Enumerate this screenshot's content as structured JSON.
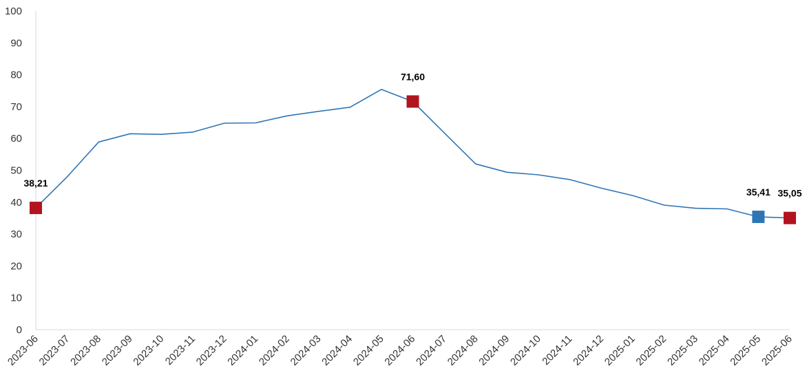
{
  "chart_data": {
    "type": "line",
    "title": "",
    "xlabel": "",
    "ylabel": "",
    "ylim": [
      0,
      100
    ],
    "y_ticks": [
      "0",
      "10",
      "20",
      "30",
      "40",
      "50",
      "60",
      "70",
      "80",
      "90",
      "100"
    ],
    "grid": false,
    "legend": "none",
    "categories": [
      "2023-06",
      "2023-07",
      "2023-08",
      "2023-09",
      "2023-10",
      "2023-11",
      "2023-12",
      "2024-01",
      "2024-02",
      "2024-03",
      "2024-04",
      "2024-05",
      "2024-06",
      "2024-07",
      "2024-08",
      "2024-09",
      "2024-10",
      "2024-11",
      "2024-12",
      "2025-01",
      "2025-02",
      "2025-03",
      "2025-04",
      "2025-05",
      "2025-06"
    ],
    "series": [
      {
        "color": "#2e75b6",
        "values": [
          38.21,
          48.0,
          58.9,
          61.5,
          61.3,
          62.0,
          64.8,
          64.9,
          67.1,
          68.5,
          69.8,
          75.4,
          71.6,
          61.8,
          52.0,
          49.4,
          48.6,
          47.1,
          44.4,
          42.1,
          39.1,
          38.1,
          37.9,
          35.41,
          35.05
        ]
      }
    ],
    "highlights": [
      {
        "category": "2023-06",
        "label": "38,21",
        "color": "#b2141f"
      },
      {
        "category": "2024-06",
        "label": "71,60",
        "color": "#b2141f"
      },
      {
        "category": "2025-05",
        "label": "35,41",
        "color": "#2e75b6"
      },
      {
        "category": "2025-06",
        "label": "35,05",
        "color": "#b2141f"
      }
    ]
  }
}
